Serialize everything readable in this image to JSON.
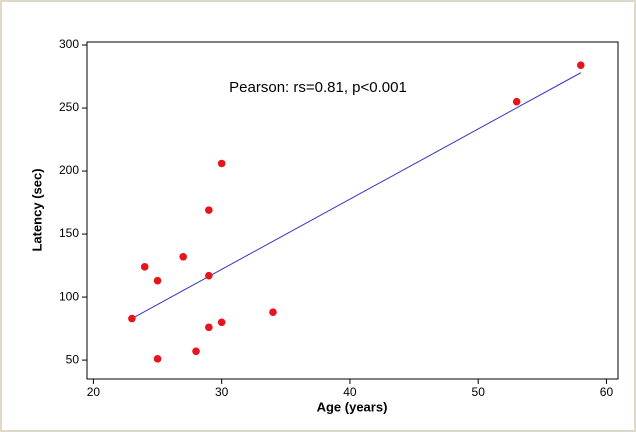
{
  "chart_data": {
    "type": "scatter",
    "annotation": "Pearson: rs=0.81, p<0.001",
    "x_label": "Age (years)",
    "y_label": "Latency (sec)",
    "x": [
      23,
      24,
      25,
      25,
      27,
      28,
      29,
      29,
      29,
      30,
      30,
      34,
      53,
      58
    ],
    "values": [
      83,
      124,
      113,
      51,
      132,
      57,
      169,
      117,
      76,
      206,
      80,
      88,
      255,
      284
    ],
    "color": "#e8141b",
    "fit_line": {
      "x": [
        23,
        58
      ],
      "values": [
        83,
        278
      ],
      "color": "#3434c8"
    },
    "xlim": [
      19.5,
      60.9
    ],
    "ylim": [
      35,
      302.4
    ],
    "xticks": [
      20,
      30,
      40,
      50,
      60
    ],
    "yticks": [
      50,
      100,
      150,
      200,
      250,
      300
    ],
    "grid": false
  }
}
